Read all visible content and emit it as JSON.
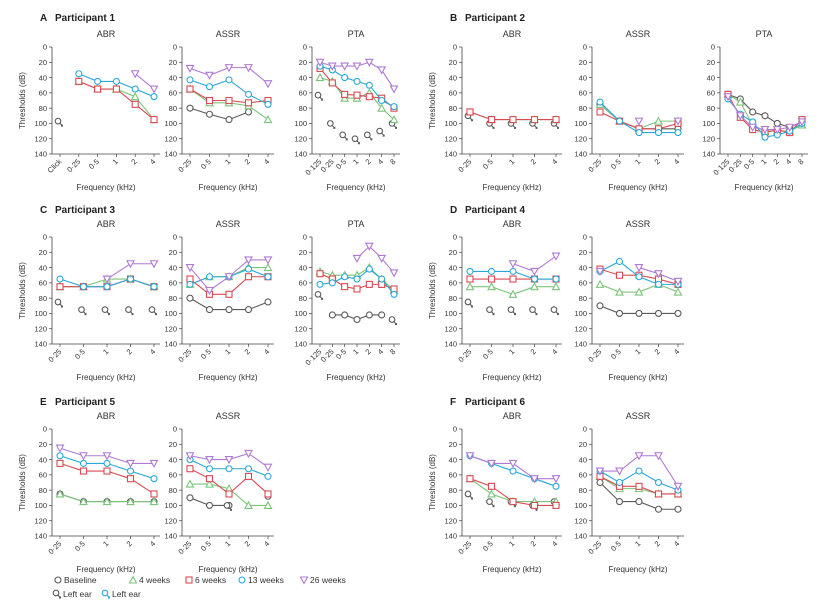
{
  "figure": {
    "colors": {
      "baseline": "#5a5a5a",
      "4 weeks": "#7cc47a",
      "6 weeks": "#d94a52",
      "13 weeks": "#29a8d8",
      "26 weeks": "#b07ad4",
      "axis": "#444444"
    },
    "ylabel": "Thresholds (dB)",
    "xlabel": "Frequency (kHz)",
    "yticks": [
      "0",
      "20",
      "40",
      "60",
      "80",
      "100",
      "120",
      "140"
    ],
    "legend": {
      "baseline": "Baseline",
      "w4": "4 weeks",
      "w6": "6 weeks",
      "w13": "13 weeks",
      "w26": "26 weeks",
      "left_ear_1": "Left ear",
      "left_ear_2": "Left ear"
    }
  },
  "chart_data": [
    {
      "id": "A1",
      "letter": "A",
      "participant": "Participant 1",
      "subtitle": "ABR",
      "type": "line",
      "categories": [
        "Click",
        "0·25",
        "0·5",
        "1",
        "2",
        "4"
      ],
      "ylim": [
        0,
        140
      ],
      "inverted_y": true,
      "series": [
        {
          "key": "baseline",
          "values": [
            null,
            null,
            null,
            null,
            null,
            null
          ],
          "left": [
            97,
            null,
            null,
            null,
            null,
            null
          ]
        },
        {
          "key": "4 weeks",
          "values": [
            null,
            45,
            55,
            55,
            65,
            95
          ]
        },
        {
          "key": "6 weeks",
          "values": [
            null,
            45,
            55,
            55,
            75,
            95
          ]
        },
        {
          "key": "13 weeks",
          "values": [
            null,
            35,
            45,
            45,
            55,
            65
          ]
        },
        {
          "key": "26 weeks",
          "values": [
            null,
            null,
            null,
            null,
            35,
            55
          ]
        }
      ]
    },
    {
      "id": "A2",
      "subtitle": "ASSR",
      "type": "line",
      "categories": [
        "0·25",
        "0·5",
        "1",
        "2",
        "4"
      ],
      "ylim": [
        0,
        140
      ],
      "inverted_y": true,
      "series": [
        {
          "key": "baseline",
          "values": [
            80,
            88,
            95,
            85,
            null
          ]
        },
        {
          "key": "4 weeks",
          "values": [
            55,
            73,
            73,
            77,
            95
          ]
        },
        {
          "key": "6 weeks",
          "values": [
            55,
            70,
            70,
            73,
            70
          ]
        },
        {
          "key": "13 weeks",
          "values": [
            43,
            52,
            43,
            62,
            75
          ]
        },
        {
          "key": "26 weeks",
          "values": [
            28,
            37,
            27,
            27,
            48
          ]
        }
      ]
    },
    {
      "id": "A3",
      "subtitle": "PTA",
      "type": "line",
      "categories": [
        "0·125",
        "0·25",
        "0·5",
        "1",
        "2",
        "4",
        "8"
      ],
      "ylim": [
        0,
        140
      ],
      "inverted_y": true,
      "series": [
        {
          "key": "baseline",
          "values": [
            null,
            null,
            null,
            null,
            null,
            null,
            null
          ],
          "left": [
            63,
            100,
            115,
            120,
            115,
            110,
            100
          ]
        },
        {
          "key": "4 weeks",
          "values": [
            40,
            45,
            67,
            67,
            60,
            80,
            95
          ]
        },
        {
          "key": "6 weeks",
          "values": [
            28,
            47,
            62,
            63,
            65,
            67,
            80
          ]
        },
        {
          "key": "13 weeks",
          "values": [
            25,
            30,
            40,
            45,
            50,
            70,
            78
          ]
        },
        {
          "key": "26 weeks",
          "values": [
            20,
            25,
            25,
            25,
            20,
            30,
            55
          ]
        }
      ]
    },
    {
      "id": "B1",
      "letter": "B",
      "participant": "Participant 2",
      "subtitle": "ABR",
      "type": "line",
      "categories": [
        "0·25",
        "0·5",
        "1",
        "2",
        "4"
      ],
      "ylim": [
        0,
        140
      ],
      "inverted_y": true,
      "series": [
        {
          "key": "baseline",
          "values": [
            null,
            null,
            null,
            null,
            null
          ],
          "left": [
            90,
            100,
            100,
            100,
            100
          ]
        },
        {
          "key": "4 weeks",
          "values": [
            85,
            95,
            95,
            95,
            95
          ]
        },
        {
          "key": "6 weeks",
          "values": [
            85,
            95,
            95,
            95,
            95
          ]
        },
        {
          "key": "13 weeks",
          "values": [
            null,
            null,
            null,
            null,
            null
          ]
        },
        {
          "key": "26 weeks",
          "values": [
            null,
            null,
            null,
            null,
            null
          ]
        }
      ]
    },
    {
      "id": "B2",
      "subtitle": "ASSR",
      "type": "line",
      "categories": [
        "0·25",
        "0·5",
        "1",
        "2",
        "4"
      ],
      "ylim": [
        0,
        140
      ],
      "inverted_y": true,
      "series": [
        {
          "key": "baseline",
          "values": [
            75,
            97,
            107,
            107,
            107
          ]
        },
        {
          "key": "4 weeks",
          "values": [
            75,
            97,
            107,
            97,
            97
          ]
        },
        {
          "key": "6 weeks",
          "values": [
            85,
            97,
            107,
            107,
            100
          ]
        },
        {
          "key": "13 weeks",
          "values": [
            72,
            97,
            112,
            112,
            112
          ]
        },
        {
          "key": "26 weeks",
          "values": [
            null,
            null,
            97,
            null,
            97
          ]
        }
      ]
    },
    {
      "id": "B3",
      "subtitle": "PTA",
      "type": "line",
      "categories": [
        "0·125",
        "0·25",
        "0·5",
        "1",
        "2",
        "4",
        "8"
      ],
      "ylim": [
        0,
        140
      ],
      "inverted_y": true,
      "series": [
        {
          "key": "baseline",
          "values": [
            62,
            68,
            85,
            90,
            100,
            105,
            98
          ]
        },
        {
          "key": "4 weeks",
          "values": [
            62,
            72,
            102,
            110,
            110,
            110,
            102
          ]
        },
        {
          "key": "6 weeks",
          "values": [
            62,
            92,
            108,
            112,
            108,
            112,
            95
          ]
        },
        {
          "key": "13 weeks",
          "values": [
            68,
            88,
            98,
            118,
            115,
            110,
            100
          ]
        },
        {
          "key": "26 weeks",
          "values": [
            65,
            90,
            105,
            108,
            108,
            105,
            98
          ]
        }
      ]
    },
    {
      "id": "C1",
      "letter": "C",
      "participant": "Participant 3",
      "subtitle": "ABR",
      "type": "line",
      "categories": [
        "0·25",
        "0·5",
        "1",
        "2",
        "4"
      ],
      "ylim": [
        0,
        140
      ],
      "inverted_y": true,
      "series": [
        {
          "key": "baseline",
          "values": [
            null,
            null,
            null,
            null,
            null
          ],
          "left": [
            85,
            95,
            95,
            95,
            95
          ]
        },
        {
          "key": "4 weeks",
          "values": [
            65,
            65,
            55,
            55,
            65
          ]
        },
        {
          "key": "6 weeks",
          "values": [
            65,
            65,
            65,
            55,
            65
          ]
        },
        {
          "key": "13 weeks",
          "values": [
            55,
            65,
            65,
            55,
            65
          ]
        },
        {
          "key": "26 weeks",
          "values": [
            null,
            null,
            55,
            35,
            35
          ]
        }
      ]
    },
    {
      "id": "C2",
      "subtitle": "ASSR",
      "type": "line",
      "categories": [
        "0·25",
        "0·5",
        "1",
        "2",
        "4"
      ],
      "ylim": [
        0,
        140
      ],
      "inverted_y": true,
      "series": [
        {
          "key": "baseline",
          "values": [
            80,
            95,
            95,
            95,
            85
          ]
        },
        {
          "key": "4 weeks",
          "values": [
            62,
            52,
            52,
            40,
            40
          ]
        },
        {
          "key": "6 weeks",
          "values": [
            55,
            75,
            75,
            52,
            52
          ]
        },
        {
          "key": "13 weeks",
          "values": [
            62,
            52,
            52,
            42,
            52
          ]
        },
        {
          "key": "26 weeks",
          "values": [
            40,
            70,
            52,
            30,
            30
          ]
        }
      ]
    },
    {
      "id": "C3",
      "subtitle": "PTA",
      "type": "line",
      "categories": [
        "0·125",
        "0·25",
        "0·5",
        "1",
        "2",
        "4",
        "8"
      ],
      "ylim": [
        0,
        140
      ],
      "inverted_y": true,
      "series": [
        {
          "key": "baseline",
          "values": [
            null,
            102,
            102,
            108,
            102,
            102,
            null
          ],
          "left": [
            75,
            null,
            null,
            null,
            null,
            null,
            108
          ]
        },
        {
          "key": "4 weeks",
          "values": [
            45,
            50,
            50,
            50,
            40,
            55,
            70
          ]
        },
        {
          "key": "6 weeks",
          "values": [
            48,
            55,
            65,
            68,
            62,
            62,
            68
          ]
        },
        {
          "key": "13 weeks",
          "values": [
            62,
            60,
            52,
            55,
            42,
            55,
            75
          ]
        },
        {
          "key": "26 weeks",
          "values": [
            null,
            null,
            null,
            28,
            12,
            28,
            47
          ]
        }
      ]
    },
    {
      "id": "D1",
      "letter": "D",
      "participant": "Participant 4",
      "subtitle": "ABR",
      "type": "line",
      "categories": [
        "0·25",
        "0·5",
        "1",
        "2",
        "4"
      ],
      "ylim": [
        0,
        140
      ],
      "inverted_y": true,
      "series": [
        {
          "key": "baseline",
          "values": [
            null,
            null,
            null,
            null,
            null
          ],
          "left": [
            85,
            95,
            95,
            95,
            95
          ]
        },
        {
          "key": "4 weeks",
          "values": [
            65,
            65,
            75,
            65,
            65
          ]
        },
        {
          "key": "6 weeks",
          "values": [
            55,
            55,
            55,
            55,
            55
          ]
        },
        {
          "key": "13 weeks",
          "values": [
            45,
            45,
            45,
            55,
            55
          ]
        },
        {
          "key": "26 weeks",
          "values": [
            null,
            null,
            35,
            45,
            25
          ]
        }
      ]
    },
    {
      "id": "D2",
      "subtitle": "ASSR",
      "type": "line",
      "categories": [
        "0·25",
        "0·5",
        "1",
        "2",
        "4"
      ],
      "ylim": [
        0,
        140
      ],
      "inverted_y": true,
      "series": [
        {
          "key": "baseline",
          "values": [
            90,
            100,
            100,
            100,
            100
          ]
        },
        {
          "key": "4 weeks",
          "values": [
            62,
            72,
            72,
            62,
            72
          ]
        },
        {
          "key": "6 weeks",
          "values": [
            42,
            50,
            50,
            55,
            62
          ]
        },
        {
          "key": "13 weeks",
          "values": [
            45,
            32,
            52,
            62,
            62
          ]
        },
        {
          "key": "26 weeks",
          "values": [
            45,
            null,
            40,
            48,
            58
          ]
        }
      ]
    },
    {
      "id": "E1",
      "letter": "E",
      "participant": "Participant 5",
      "subtitle": "ABR",
      "type": "line",
      "categories": [
        "0·25",
        "0·5",
        "1",
        "2",
        "4"
      ],
      "ylim": [
        0,
        140
      ],
      "inverted_y": true,
      "series": [
        {
          "key": "baseline",
          "values": [
            85,
            95,
            95,
            95,
            95
          ]
        },
        {
          "key": "4 weeks",
          "values": [
            85,
            95,
            95,
            95,
            95
          ]
        },
        {
          "key": "6 weeks",
          "values": [
            45,
            55,
            55,
            65,
            85
          ]
        },
        {
          "key": "13 weeks",
          "values": [
            35,
            45,
            45,
            55,
            65
          ]
        },
        {
          "key": "26 weeks",
          "values": [
            25,
            35,
            35,
            45,
            45
          ]
        }
      ]
    },
    {
      "id": "E2",
      "subtitle": "ASSR",
      "type": "line",
      "categories": [
        "0·25",
        "0·5",
        "1",
        "2",
        "4"
      ],
      "ylim": [
        0,
        140
      ],
      "inverted_y": true,
      "series": [
        {
          "key": "baseline",
          "values": [
            90,
            100,
            100,
            null,
            88
          ],
          "left": [
            null,
            null,
            100,
            null,
            null
          ]
        },
        {
          "key": "4 weeks",
          "values": [
            72,
            72,
            78,
            100,
            100
          ]
        },
        {
          "key": "6 weeks",
          "values": [
            52,
            65,
            85,
            62,
            85
          ]
        },
        {
          "key": "13 weeks",
          "values": [
            40,
            52,
            52,
            52,
            62
          ]
        },
        {
          "key": "26 weeks",
          "values": [
            35,
            40,
            40,
            32,
            50
          ]
        }
      ]
    },
    {
      "id": "F1",
      "letter": "F",
      "participant": "Participant 6",
      "subtitle": "ABR",
      "type": "line",
      "categories": [
        "0·25",
        "0·5",
        "1",
        "2",
        "4"
      ],
      "ylim": [
        0,
        140
      ],
      "inverted_y": true,
      "series": [
        {
          "key": "baseline",
          "values": [
            null,
            null,
            null,
            null,
            null
          ],
          "left": [
            85,
            95,
            95,
            100,
            95
          ]
        },
        {
          "key": "4 weeks",
          "values": [
            65,
            85,
            95,
            95,
            95
          ]
        },
        {
          "key": "6 weeks",
          "values": [
            65,
            75,
            95,
            100,
            100
          ]
        },
        {
          "key": "13 weeks",
          "values": [
            35,
            45,
            55,
            65,
            75
          ]
        },
        {
          "key": "26 weeks",
          "values": [
            35,
            45,
            45,
            65,
            65
          ]
        }
      ]
    },
    {
      "id": "F2",
      "subtitle": "ASSR",
      "type": "line",
      "categories": [
        "0·25",
        "0·5",
        "1",
        "2",
        "4"
      ],
      "ylim": [
        0,
        140
      ],
      "inverted_y": true,
      "series": [
        {
          "key": "baseline",
          "values": [
            70,
            95,
            95,
            105,
            105
          ]
        },
        {
          "key": "4 weeks",
          "values": [
            62,
            78,
            78,
            85,
            85
          ]
        },
        {
          "key": "6 weeks",
          "values": [
            62,
            75,
            75,
            85,
            85
          ]
        },
        {
          "key": "13 weeks",
          "values": [
            55,
            70,
            55,
            70,
            80
          ]
        },
        {
          "key": "26 weeks",
          "values": [
            55,
            55,
            35,
            35,
            75
          ]
        }
      ]
    }
  ]
}
